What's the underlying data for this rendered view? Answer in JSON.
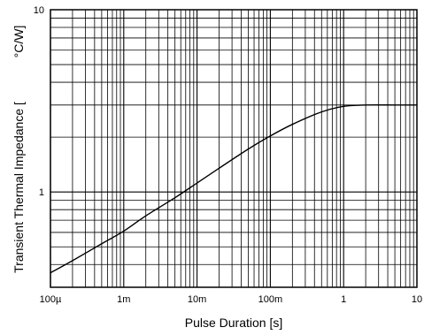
{
  "chart_data": {
    "type": "line",
    "title": "",
    "xlabel": "Pulse Duration [s]",
    "ylabel": "Transient Thermal Impedance [",
    "ylabel_unit": "°C/W]",
    "x_scale": "log",
    "y_scale": "log",
    "xlim": [
      0.0001,
      10
    ],
    "ylim": [
      0.3,
      10
    ],
    "grid": true,
    "legend": "none",
    "x_ticks": [
      {
        "value": 0.0001,
        "label": "100µ"
      },
      {
        "value": 0.001,
        "label": "1m"
      },
      {
        "value": 0.01,
        "label": "10m"
      },
      {
        "value": 0.1,
        "label": "100m"
      },
      {
        "value": 1,
        "label": "1"
      },
      {
        "value": 10,
        "label": "10"
      }
    ],
    "y_ticks": [
      {
        "value": 1,
        "label": "1"
      },
      {
        "value": 10,
        "label": "10"
      }
    ],
    "series": [
      {
        "line_color": "#000000",
        "x": [
          0.0001,
          0.0002,
          0.0005,
          0.001,
          0.002,
          0.005,
          0.01,
          0.02,
          0.05,
          0.1,
          0.2,
          0.5,
          1,
          2,
          5,
          10
        ],
        "y": [
          0.36,
          0.42,
          0.52,
          0.61,
          0.74,
          0.93,
          1.12,
          1.35,
          1.72,
          2.03,
          2.35,
          2.75,
          2.95,
          3.0,
          3.0,
          3.0
        ]
      }
    ]
  }
}
